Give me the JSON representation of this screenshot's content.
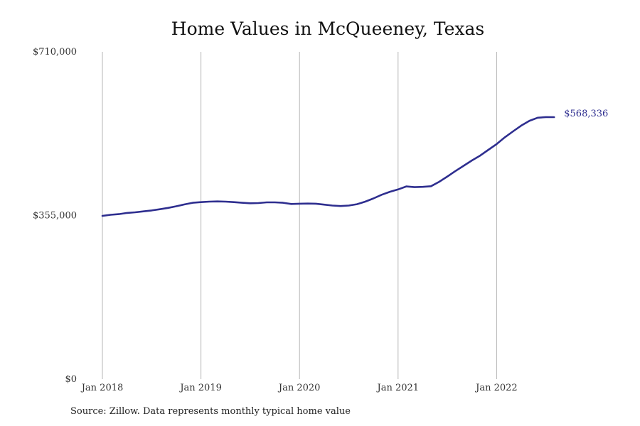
{
  "chart_data": {
    "type": "line",
    "title": "Home Values in McQueeney, Texas",
    "xlabel": "",
    "ylabel": "",
    "x_ticks": [
      "Jan 2018",
      "Jan 2019",
      "Jan 2020",
      "Jan 2021",
      "Jan 2022"
    ],
    "y_ticks": [
      "$0",
      "$355,000",
      "$710,000"
    ],
    "y_tick_values": [
      0,
      355000,
      710000
    ],
    "ylim": [
      0,
      710000
    ],
    "grid": "vertical",
    "legend": "none",
    "line_color": "#2e2e8f",
    "end_label": "$568,336",
    "series": [
      {
        "x": [
          "2018-01",
          "2018-02",
          "2018-03",
          "2018-04",
          "2018-05",
          "2018-06",
          "2018-07",
          "2018-08",
          "2018-09",
          "2018-10",
          "2018-11",
          "2018-12",
          "2019-01",
          "2019-02",
          "2019-03",
          "2019-04",
          "2019-05",
          "2019-06",
          "2019-07",
          "2019-08",
          "2019-09",
          "2019-10",
          "2019-11",
          "2019-12",
          "2020-01",
          "2020-02",
          "2020-03",
          "2020-04",
          "2020-05",
          "2020-06",
          "2020-07",
          "2020-08",
          "2020-09",
          "2020-10",
          "2020-11",
          "2020-12",
          "2021-01",
          "2021-02",
          "2021-03",
          "2021-04",
          "2021-05",
          "2021-06",
          "2021-07",
          "2021-08",
          "2021-09",
          "2021-10",
          "2021-11",
          "2021-12",
          "2022-01",
          "2022-02",
          "2022-03",
          "2022-04",
          "2022-05",
          "2022-06",
          "2022-07",
          "2022-08"
        ],
        "values": [
          354000,
          356500,
          358000,
          360500,
          362000,
          364000,
          366000,
          368500,
          371500,
          375000,
          379000,
          382500,
          384000,
          385000,
          385500,
          385000,
          384000,
          382500,
          381500,
          382000,
          383500,
          383500,
          382500,
          380000,
          380500,
          380800,
          380500,
          378500,
          376500,
          375500,
          376500,
          379500,
          385000,
          392000,
          400000,
          406500,
          411500,
          418000,
          416500,
          417000,
          418500,
          428000,
          439500,
          451500,
          463000,
          474500,
          485000,
          497500,
          510000,
          524500,
          537500,
          550000,
          560500,
          567000,
          568500,
          568336
        ]
      }
    ]
  },
  "source": "Source: Zillow. Data represents monthly typical home value"
}
